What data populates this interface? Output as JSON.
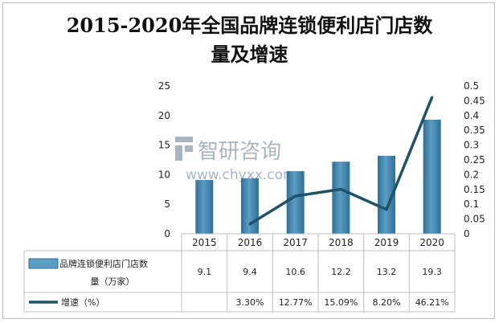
{
  "title_line1": "2015-2020年全国品牌连锁便利店门店数",
  "title_line2": "量及增速",
  "watermark": {
    "brand": "智研咨询",
    "url": "www.chyxx.com"
  },
  "colors": {
    "bar": "#5b9ec4",
    "bar_dark": "#2f6f98",
    "line": "#1f5367",
    "grid": "#d9d9d9"
  },
  "chart_data": {
    "type": "bar",
    "categories": [
      "2015",
      "2016",
      "2017",
      "2018",
      "2019",
      "2020"
    ],
    "series": [
      {
        "name": "品牌连锁便利店门店数量（万家）",
        "type": "bar",
        "axis": "left",
        "values": [
          9.1,
          9.4,
          10.6,
          12.2,
          13.2,
          19.3
        ],
        "labels": [
          "9.1",
          "9.4",
          "10.6",
          "12.2",
          "13.2",
          "19.3"
        ]
      },
      {
        "name": "增速（%）",
        "type": "line",
        "axis": "right",
        "values": [
          null,
          0.033,
          0.1277,
          0.1509,
          0.082,
          0.4621
        ],
        "labels": [
          "",
          "3.30%",
          "12.77%",
          "15.09%",
          "8.20%",
          "46.21%"
        ]
      }
    ],
    "y_left": {
      "min": 0,
      "max": 25,
      "ticks": [
        "0",
        "5",
        "10",
        "15",
        "20",
        "25"
      ]
    },
    "y_right": {
      "min": 0,
      "max": 0.5,
      "ticks": [
        "0",
        "0.05",
        "0.1",
        "0.15",
        "0.2",
        "0.25",
        "0.3",
        "0.35",
        "0.4",
        "0.45",
        "0.5"
      ]
    },
    "legend_placement": "data-table-bottom",
    "grid": false
  }
}
